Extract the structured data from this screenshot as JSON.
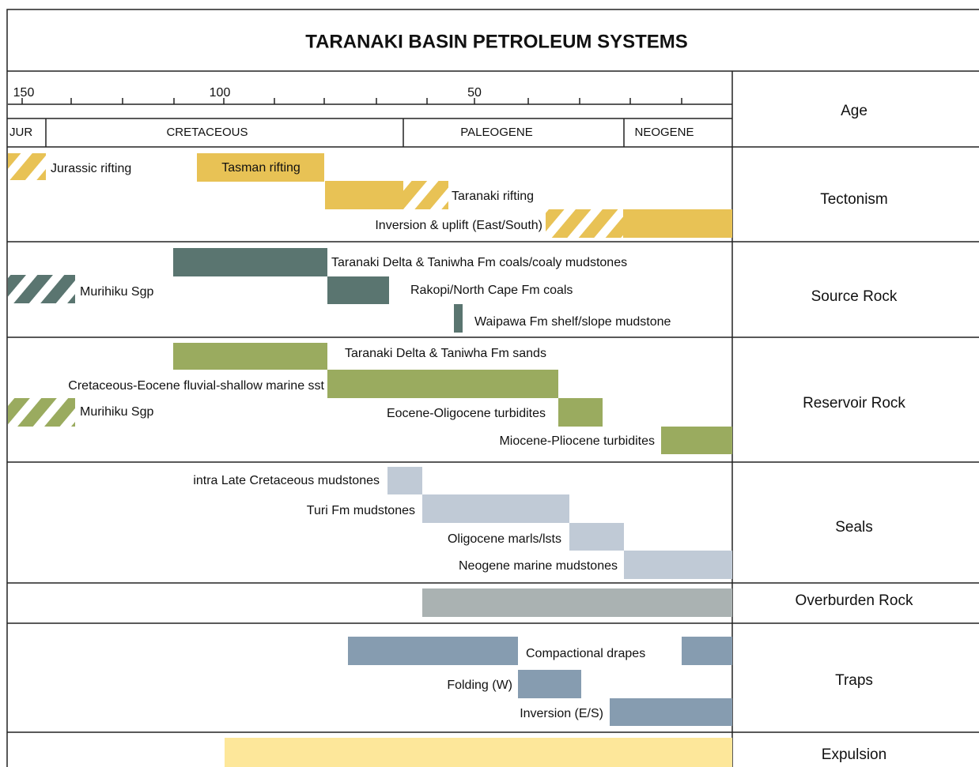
{
  "title": "TARANAKI  BASIN PETROLEUM SYSTEMS",
  "age_axis": {
    "labels": [
      150,
      100,
      50
    ]
  },
  "periods": [
    "JUR",
    "CRETACEOUS",
    "PALEOGENE",
    "NEOGENE"
  ],
  "rows": [
    "Age",
    "Tectonism",
    "Source Rock",
    "Reservoir Rock",
    "Seals",
    "Overburden Rock",
    "Traps",
    "Expulsion"
  ],
  "tectonism": [
    "Jurassic rifting",
    "Tasman rifting",
    "Taranaki rifting",
    "Inversion & uplift (East/South)"
  ],
  "source_rock": [
    "Taranaki Delta & Taniwha Fm coals/coaly mudstones",
    "Murihiku Sgp",
    "Rakopi/North Cape Fm coals",
    "Waipawa Fm shelf/slope mudstone"
  ],
  "reservoir_rock": [
    "Taranaki Delta & Taniwha Fm sands",
    "Cretaceous-Eocene fluvial-shallow marine sst",
    "Murihiku Sgp",
    "Eocene-Oligocene turbidites",
    "Miocene-Pliocene turbidites"
  ],
  "seals": [
    "intra Late Cretaceous mudstones",
    "Turi Fm mudstones",
    "Oligocene marls/lsts",
    "Neogene marine mudstones"
  ],
  "traps": [
    "Compactional drapes",
    "Folding (W)",
    "Inversion (E/S)"
  ]
}
